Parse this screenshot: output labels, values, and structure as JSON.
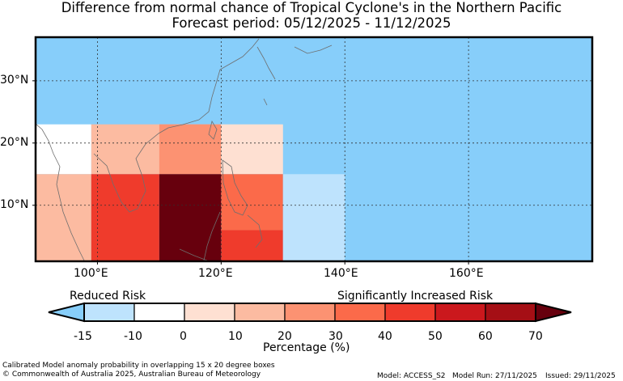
{
  "title": {
    "line1": "Difference from normal chance of Tropical Cyclone's in the Northern Pacific",
    "line2": "Forecast period: 05/12/2025 - 11/12/2025"
  },
  "map": {
    "background_color": "#87CEFA",
    "lon_range": [
      90,
      180
    ],
    "lat_range": [
      1,
      37
    ],
    "grid_lons": [
      100,
      120,
      140,
      160
    ],
    "grid_lats": [
      10,
      20,
      30
    ],
    "lon_labels": [
      "100°E",
      "120°E",
      "140°E",
      "160°E"
    ],
    "lat_labels": [
      "30°N",
      "20°N",
      "10°N"
    ],
    "cells": [
      {
        "lon": [
          90,
          99
        ],
        "lat": [
          15,
          23
        ],
        "value": -5
      },
      {
        "lon": [
          99,
          120
        ],
        "lat": [
          15,
          23
        ],
        "value": 15
      },
      {
        "lon": [
          110,
          120
        ],
        "lat": [
          15,
          23
        ],
        "value": 25
      },
      {
        "lon": [
          120,
          130
        ],
        "lat": [
          15,
          23
        ],
        "value": 5
      },
      {
        "lon": [
          90,
          99
        ],
        "lat": [
          1,
          15
        ],
        "value": 15
      },
      {
        "lon": [
          99,
          110
        ],
        "lat": [
          1,
          15
        ],
        "value": 45
      },
      {
        "lon": [
          110,
          120
        ],
        "lat": [
          1,
          15
        ],
        "value": 75
      },
      {
        "lon": [
          120,
          130
        ],
        "lat": [
          6,
          15
        ],
        "value": 35
      },
      {
        "lon": [
          120,
          130
        ],
        "lat": [
          1,
          6
        ],
        "value": 45
      },
      {
        "lon": [
          130,
          140
        ],
        "lat": [
          1,
          15
        ],
        "value": -12
      }
    ]
  },
  "colorbar": {
    "reduced_label": "Reduced Risk",
    "increased_label": "Significantly Increased Risk",
    "title": "Percentage (%)",
    "ticks": [
      "-15",
      "-10",
      "0",
      "10",
      "20",
      "30",
      "40",
      "50",
      "60",
      "70"
    ],
    "under_color": "#87CEFA",
    "over_color": "#67000D",
    "colors": [
      "#BEE3FD",
      "#FFFFFF",
      "#FEE0D2",
      "#FCBBA1",
      "#FC9272",
      "#FB6A4A",
      "#EF3B2C",
      "#CB181D",
      "#A50F15"
    ]
  },
  "footer": {
    "note": "Calibrated Model anomaly probability in overlapping 15 x 20 degree boxes",
    "copyright": "© Commonwealth of Australia 2025, Australian Bureau of Meteorology",
    "model": "Model: ACCESS_S2",
    "model_run": "Model Run: 27/11/2025",
    "issued": "Issued: 29/11/2025"
  }
}
